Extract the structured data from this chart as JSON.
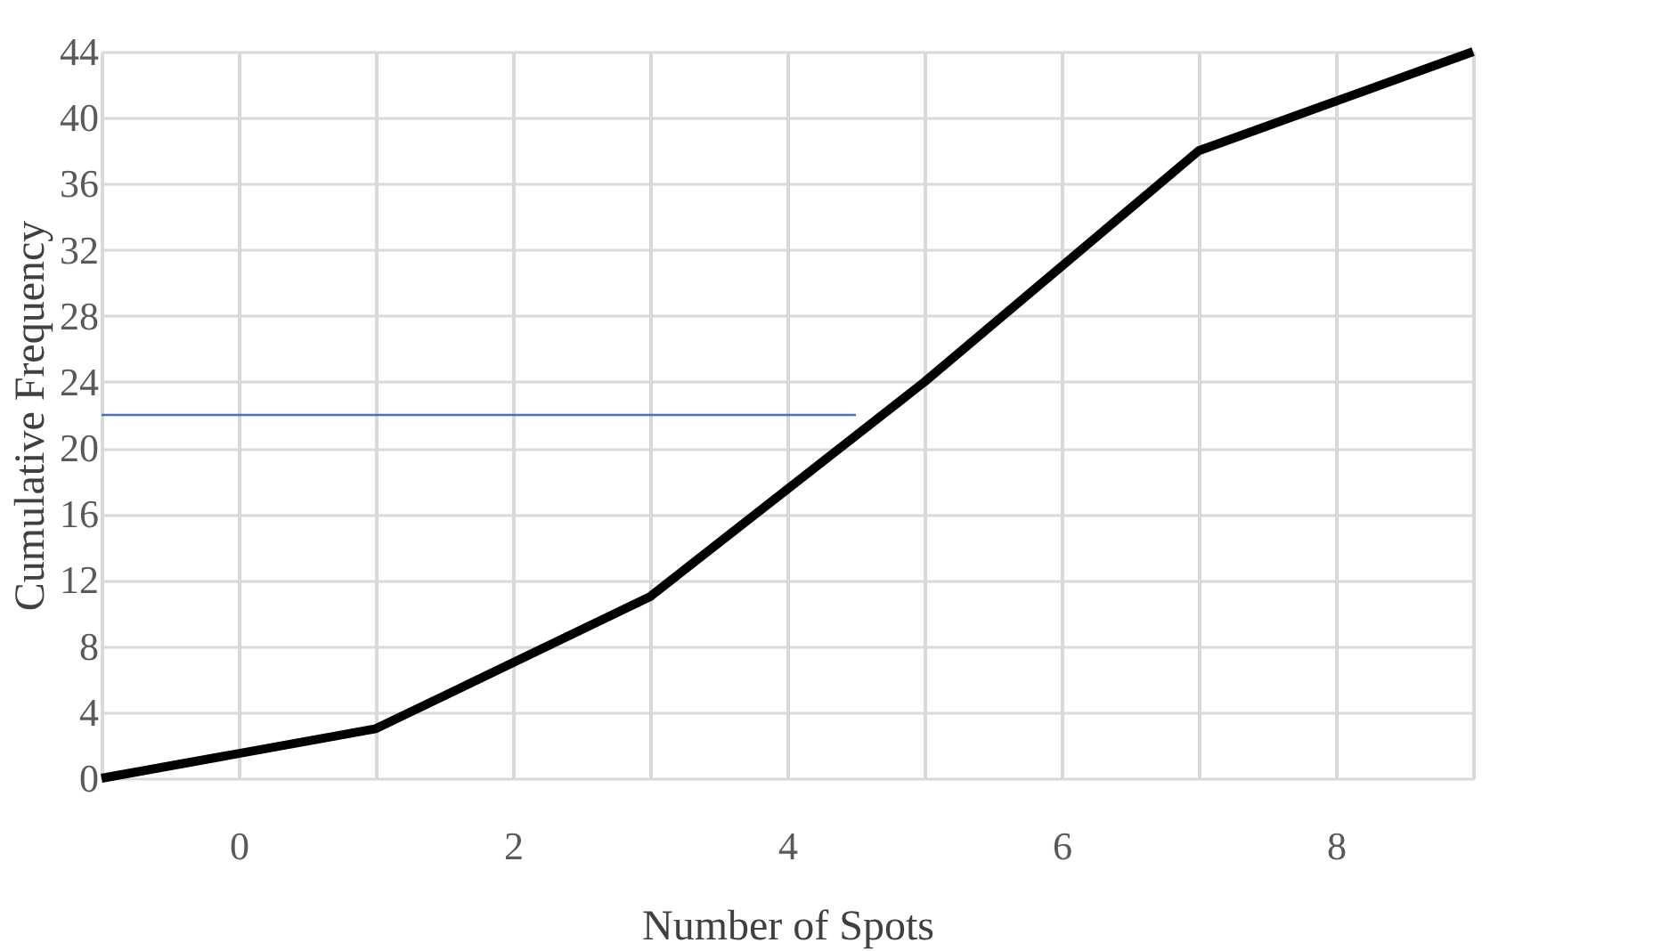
{
  "chart_data": {
    "type": "line",
    "xlabel": "Number of Spots",
    "ylabel": "Cumulative Frequency",
    "xlim": [
      -1,
      9
    ],
    "xticks": [
      {
        "value": -1,
        "label": null
      },
      0,
      {
        "value": 1,
        "label": null
      },
      2,
      {
        "value": 3,
        "label": null
      },
      4,
      {
        "value": 5,
        "label": null
      },
      6,
      {
        "value": 7,
        "label": null
      },
      8,
      {
        "value": 9,
        "label": null
      }
    ],
    "ylim": [
      0,
      44
    ],
    "yticks": [
      0,
      4,
      8,
      12,
      16,
      20,
      24,
      28,
      32,
      36,
      40,
      44
    ],
    "grid": true,
    "series": [
      {
        "color": "#000000",
        "x": [
          -1,
          1,
          3,
          5,
          7,
          9
        ],
        "values": [
          0,
          3,
          11,
          24,
          38,
          44
        ]
      },
      {
        "color": "#4472c4",
        "x": [
          -1,
          4.5
        ],
        "values": [
          22,
          22
        ]
      }
    ]
  }
}
